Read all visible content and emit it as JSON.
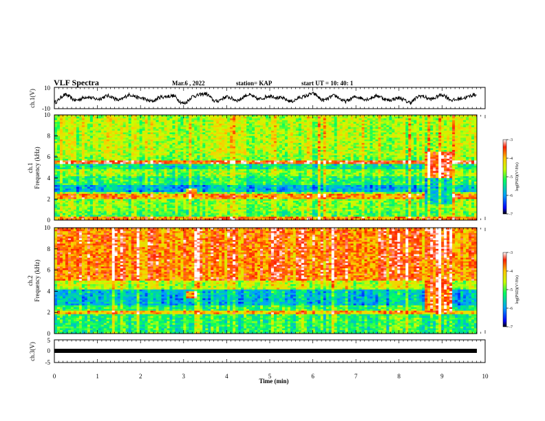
{
  "header": {
    "title": "VLF Spectra",
    "date": "Mar.6  , 2022",
    "station": "station= KAP",
    "start_ut": "start  UT =   10: 40: 1"
  },
  "chart_data": [
    {
      "type": "line",
      "panel": "ch1-waveform",
      "ylabel": "ch.1(V)",
      "ylim": [
        -10,
        10
      ],
      "yticks": [
        "10",
        "-10"
      ],
      "xlim": [
        0,
        10
      ],
      "x": [
        0,
        0.25,
        0.5,
        0.75,
        1,
        1.25,
        1.5,
        1.75,
        2,
        2.25,
        2.5,
        2.75,
        3,
        3.25,
        3.5,
        3.75,
        4,
        4.25,
        4.5,
        4.75,
        5,
        5.25,
        5.5,
        5.75,
        6,
        6.25,
        6.5,
        6.75,
        7,
        7.25,
        7.5,
        7.75,
        8,
        8.25,
        8.5,
        8.75,
        9,
        9.25,
        9.5,
        9.75
      ],
      "values": [
        -4,
        3,
        -2,
        1,
        -1,
        2,
        -2,
        3,
        0,
        -3,
        1,
        2,
        -5,
        2,
        4,
        -3,
        1,
        -2,
        3,
        -1,
        2,
        0,
        -3,
        1,
        4,
        -2,
        2,
        -3,
        1,
        -1,
        2,
        -2,
        0,
        -4,
        2,
        -1,
        3,
        -2,
        0,
        3
      ],
      "color": "#000000"
    },
    {
      "type": "heatmap",
      "panel": "ch1-spectrogram",
      "ylabel": "ch.1\nFrequency (kHz)",
      "ylim": [
        0,
        10
      ],
      "yticks": [
        "0",
        "2",
        "4",
        "6",
        "8",
        "10"
      ],
      "xlim": [
        0,
        10
      ],
      "colorbar": {
        "label": "log(PSD)(V²/Hz)",
        "range": [
          -7,
          -3
        ],
        "ticks": [
          "-3",
          "-4",
          "-5",
          "-6",
          "-7"
        ]
      }
    },
    {
      "type": "heatmap",
      "panel": "ch2-spectrogram",
      "ylabel": "ch.2\nFrequency (kHz)",
      "ylim": [
        0,
        10
      ],
      "yticks": [
        "0",
        "2",
        "4",
        "6",
        "8",
        "10"
      ],
      "xlim": [
        0,
        10
      ],
      "colorbar": {
        "label": "log(PSD)(V²/Hz)",
        "range": [
          -7,
          -3
        ],
        "ticks": [
          "-3",
          "-4",
          "-5",
          "-6",
          "-7"
        ]
      }
    },
    {
      "type": "line",
      "panel": "ch3-waveform",
      "ylabel": "ch.3(V)",
      "ylim": [
        -5,
        5
      ],
      "yticks": [
        "5",
        "0",
        "-5"
      ],
      "xlim": [
        0,
        10
      ],
      "x": [
        0,
        9.8
      ],
      "values": [
        -1,
        -1
      ],
      "color": "#000000"
    }
  ],
  "xaxis": {
    "label": "Time (min)",
    "ticks": [
      "0",
      "1",
      "2",
      "3",
      "4",
      "5",
      "6",
      "7",
      "8",
      "9",
      "10"
    ]
  }
}
